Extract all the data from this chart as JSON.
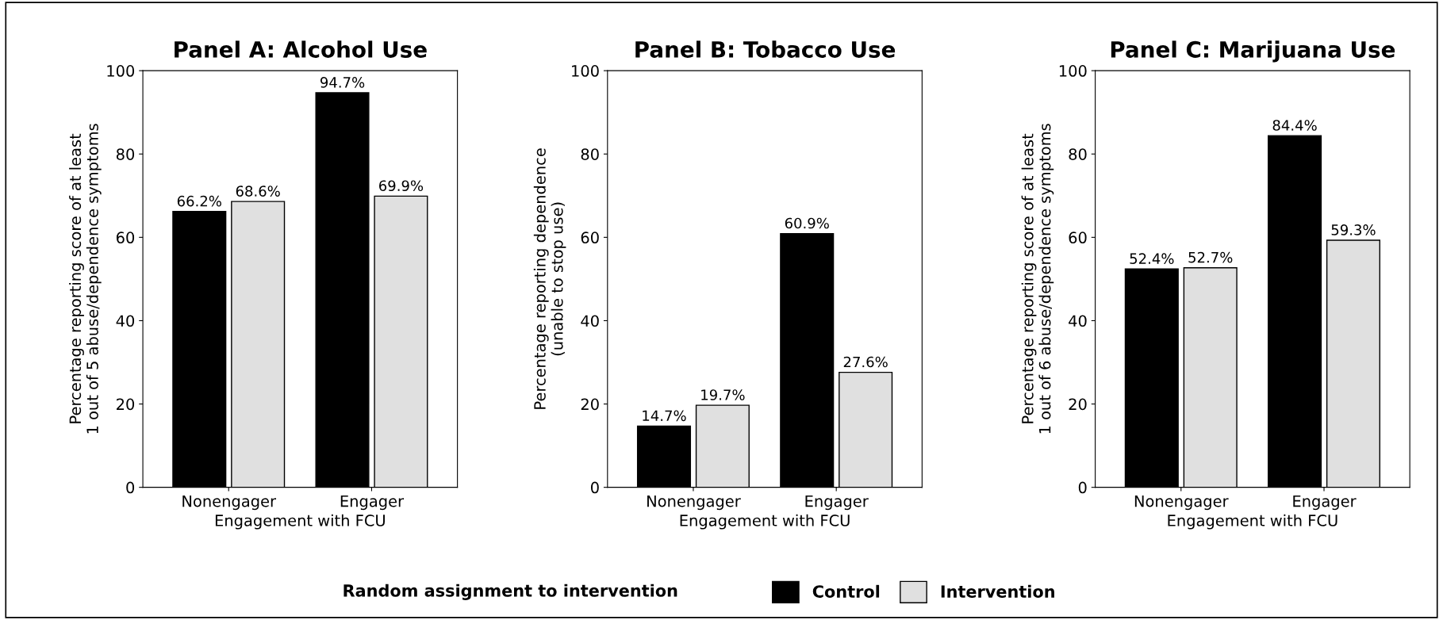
{
  "chart_data": [
    {
      "type": "bar",
      "title": "Panel A: Alcohol Use",
      "xlabel": "Engagement with FCU",
      "ylabel": "Percentage reporting score of at least\n1 out of 5 abuse/dependence symptoms",
      "categories": [
        "Nonengager",
        "Engager"
      ],
      "series": [
        {
          "name": "Control",
          "color": "#000000",
          "values": [
            66.2,
            94.7
          ],
          "value_labels": [
            "66.2%",
            "94.7%"
          ]
        },
        {
          "name": "Intervention",
          "color": "#e0e0e0",
          "values": [
            68.6,
            69.9
          ],
          "value_labels": [
            "68.6%",
            "69.9%"
          ]
        }
      ],
      "ylim": [
        0,
        100
      ],
      "yticks": [
        0,
        20,
        40,
        60,
        80,
        100
      ],
      "legend": "bottom",
      "legend_title": "Random assignment to intervention"
    },
    {
      "type": "bar",
      "title": "Panel B: Tobacco Use",
      "xlabel": "Engagement with FCU",
      "ylabel": "Percentage reporting dependence\n(unable to stop use)",
      "categories": [
        "Nonengager",
        "Engager"
      ],
      "series": [
        {
          "color": "#000000",
          "values": [
            14.7,
            60.9
          ],
          "value_labels": [
            "14.7%",
            "60.9%"
          ]
        },
        {
          "color": "#e0e0e0",
          "values": [
            19.7,
            27.6
          ],
          "value_labels": [
            "19.7%",
            "27.6%"
          ]
        }
      ],
      "ylim": [
        0,
        100
      ],
      "yticks": [
        0,
        20,
        40,
        60,
        80,
        100
      ]
    },
    {
      "type": "bar",
      "title": "Panel C: Marijuana Use",
      "xlabel": "Engagement with FCU",
      "ylabel": "Percentage reporting score of at least\n1 out of 6 abuse/dependence symptoms",
      "categories": [
        "Nonengager",
        "Engager"
      ],
      "series": [
        {
          "color": "#000000",
          "values": [
            52.4,
            84.4
          ],
          "value_labels": [
            "52.4%",
            "84.4%"
          ]
        },
        {
          "color": "#e0e0e0",
          "values": [
            52.7,
            59.3
          ],
          "value_labels": [
            "52.7%",
            "59.3%"
          ]
        }
      ],
      "ylim": [
        0,
        100
      ],
      "yticks": [
        0,
        20,
        40,
        60,
        80,
        100
      ]
    }
  ]
}
